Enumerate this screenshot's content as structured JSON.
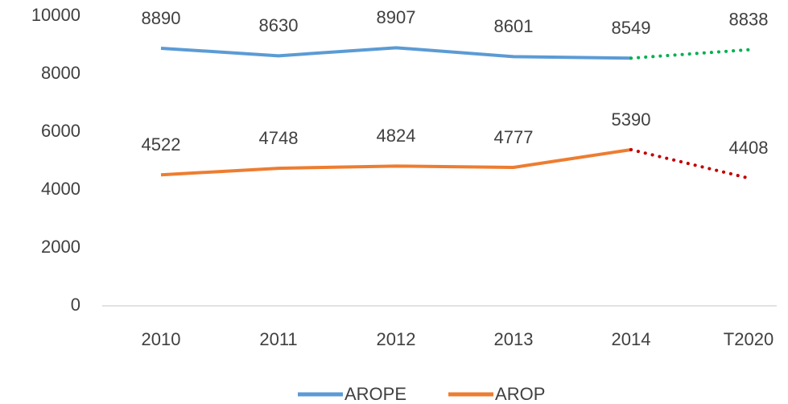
{
  "chart_data": {
    "type": "line",
    "categories": [
      "2010",
      "2011",
      "2012",
      "2013",
      "2014",
      "T2020"
    ],
    "series": [
      {
        "name": "AROPE",
        "color": "#5b9bd5",
        "target_color": "#00b050",
        "values": [
          8890,
          8630,
          8907,
          8601,
          8549,
          8838
        ]
      },
      {
        "name": "AROP",
        "color": "#ed7d31",
        "target_color": "#c00000",
        "values": [
          4522,
          4748,
          4824,
          4777,
          5390,
          4408
        ]
      }
    ],
    "ylim": [
      0,
      10000
    ],
    "yticks": [
      0,
      2000,
      4000,
      6000,
      8000,
      10000
    ],
    "grid": false,
    "legend": "bottom"
  }
}
